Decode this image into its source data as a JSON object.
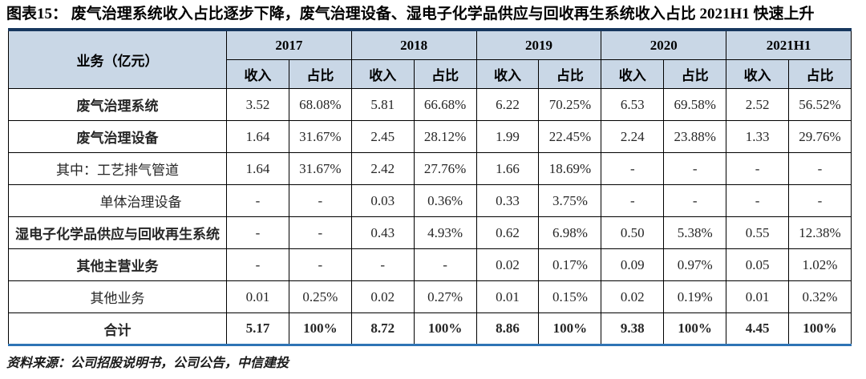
{
  "title": "图表15：  废气治理系统收入占比逐步下降，废气治理设备、湿电子化学品供应与回收再生系统收入占比 2021H1 快速上升",
  "source_note": "资料来源：公司招股说明书，公司公告，中信建投",
  "colors": {
    "header_bg": "#C9D7E6",
    "table_top_border": "#17375E",
    "table_bottom_border": "#2E74B5"
  },
  "table": {
    "corner_header": "业务（亿元）",
    "years": [
      "2017",
      "2018",
      "2019",
      "2020",
      "2021H1"
    ],
    "sub_headers": [
      "收入",
      "占比"
    ],
    "rows": [
      {
        "label": "废气治理系统",
        "bold": true,
        "indent": false,
        "total": false,
        "values": [
          "3.52",
          "68.08%",
          "5.81",
          "66.68%",
          "6.22",
          "70.25%",
          "6.53",
          "69.58%",
          "2.52",
          "56.52%"
        ]
      },
      {
        "label": "废气治理设备",
        "bold": true,
        "indent": false,
        "total": false,
        "values": [
          "1.64",
          "31.67%",
          "2.45",
          "28.12%",
          "1.99",
          "22.45%",
          "2.24",
          "23.88%",
          "1.33",
          "29.76%"
        ]
      },
      {
        "label": "其中：工艺排气管道",
        "bold": false,
        "indent": false,
        "total": false,
        "values": [
          "1.64",
          "31.67%",
          "2.42",
          "27.76%",
          "1.66",
          "18.69%",
          "-",
          "-",
          "-",
          "-"
        ]
      },
      {
        "label": "单体治理设备",
        "bold": false,
        "indent": true,
        "total": false,
        "values": [
          "-",
          "-",
          "0.03",
          "0.36%",
          "0.33",
          "3.75%",
          "-",
          "-",
          "-",
          "-"
        ]
      },
      {
        "label": "湿电子化学品供应与回收再生系统",
        "bold": true,
        "indent": false,
        "total": false,
        "values": [
          "-",
          "-",
          "0.43",
          "4.93%",
          "0.62",
          "6.98%",
          "0.50",
          "5.38%",
          "0.55",
          "12.38%"
        ]
      },
      {
        "label": "其他主营业务",
        "bold": true,
        "indent": false,
        "total": false,
        "values": [
          "-",
          "-",
          "-",
          "-",
          "0.02",
          "0.17%",
          "0.09",
          "0.97%",
          "0.05",
          "1.02%"
        ]
      },
      {
        "label": "其他业务",
        "bold": false,
        "indent": false,
        "total": false,
        "values": [
          "0.01",
          "0.25%",
          "0.02",
          "0.27%",
          "0.01",
          "0.15%",
          "0.02",
          "0.19%",
          "0.01",
          "0.32%"
        ]
      },
      {
        "label": "合计",
        "bold": true,
        "indent": false,
        "total": true,
        "values": [
          "5.17",
          "100%",
          "8.72",
          "100%",
          "8.86",
          "100%",
          "9.38",
          "100%",
          "4.45",
          "100%"
        ]
      }
    ]
  }
}
